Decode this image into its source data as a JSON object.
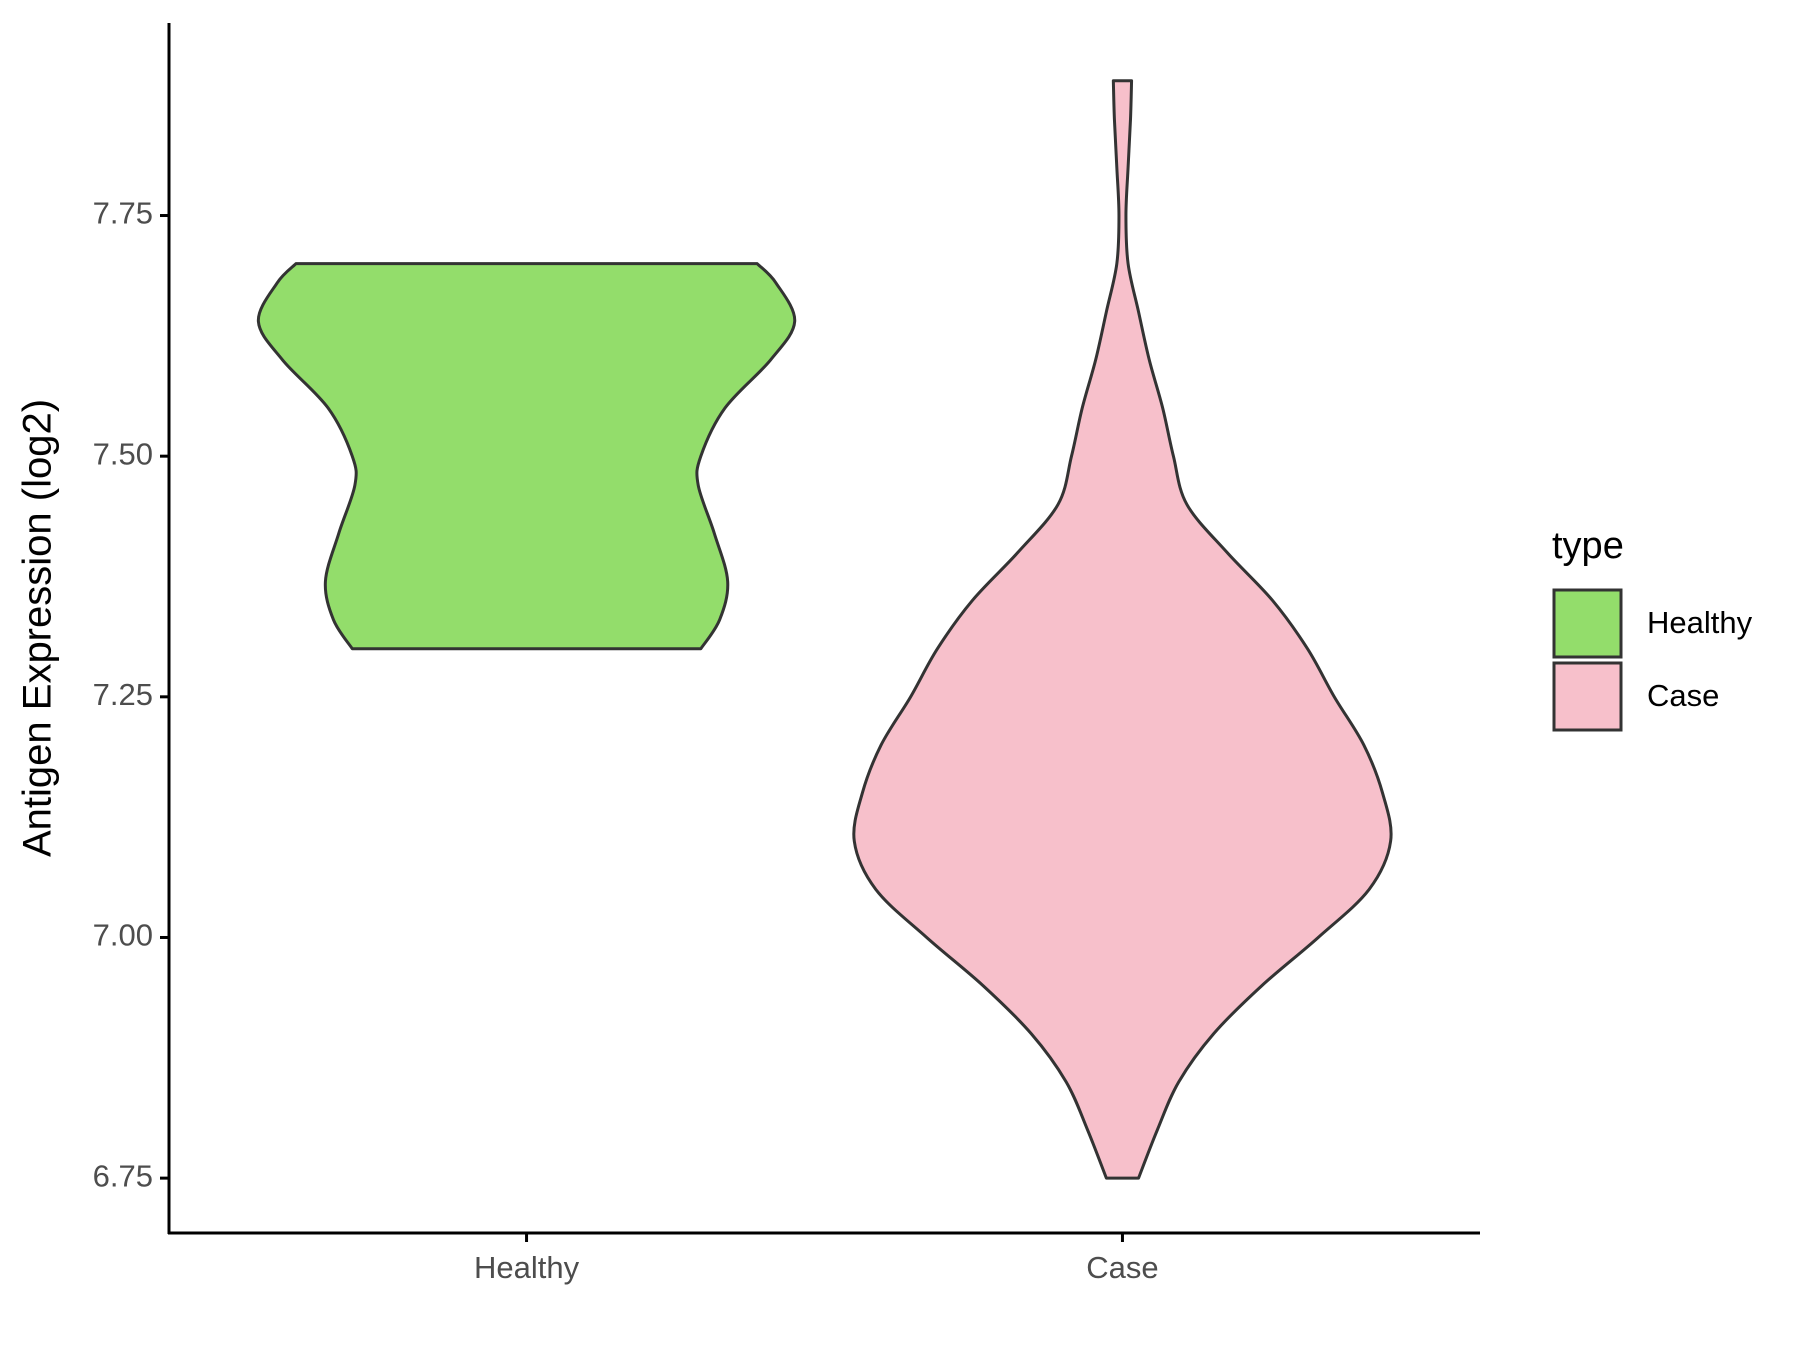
{
  "chart_data": {
    "type": "violin",
    "y_label": "Antigen Expression (log2)",
    "categories": [
      "Healthy",
      "Case"
    ],
    "legend_title": "type",
    "series": [
      {
        "name": "Healthy",
        "color": "#93dd6b",
        "y": [
          7.7,
          7.68,
          7.64,
          7.6,
          7.55,
          7.5,
          7.47,
          7.42,
          7.37,
          7.33,
          7.3
        ],
        "widths": [
          0.86,
          0.93,
          1.0,
          0.91,
          0.74,
          0.65,
          0.64,
          0.7,
          0.75,
          0.72,
          0.65
        ]
      },
      {
        "name": "Case",
        "color": "#f7c0cb",
        "y": [
          7.89,
          7.85,
          7.8,
          7.75,
          7.7,
          7.65,
          7.6,
          7.55,
          7.5,
          7.45,
          7.4,
          7.35,
          7.3,
          7.25,
          7.2,
          7.15,
          7.1,
          7.05,
          7.0,
          6.95,
          6.9,
          6.85,
          6.8,
          6.75
        ],
        "widths": [
          0.034,
          0.03,
          0.021,
          0.013,
          0.021,
          0.06,
          0.1,
          0.15,
          0.19,
          0.24,
          0.39,
          0.56,
          0.69,
          0.79,
          0.9,
          0.97,
          1.0,
          0.92,
          0.73,
          0.52,
          0.34,
          0.21,
          0.13,
          0.06
        ]
      }
    ],
    "ylim": [
      6.693,
      7.95
    ],
    "yticks": [
      {
        "value": 6.75,
        "label": "6.75"
      },
      {
        "value": 7.0,
        "label": "7.00"
      },
      {
        "value": 7.25,
        "label": "7.25"
      },
      {
        "value": 7.5,
        "label": "7.50"
      },
      {
        "value": 7.75,
        "label": "7.75"
      }
    ],
    "grid": false
  }
}
